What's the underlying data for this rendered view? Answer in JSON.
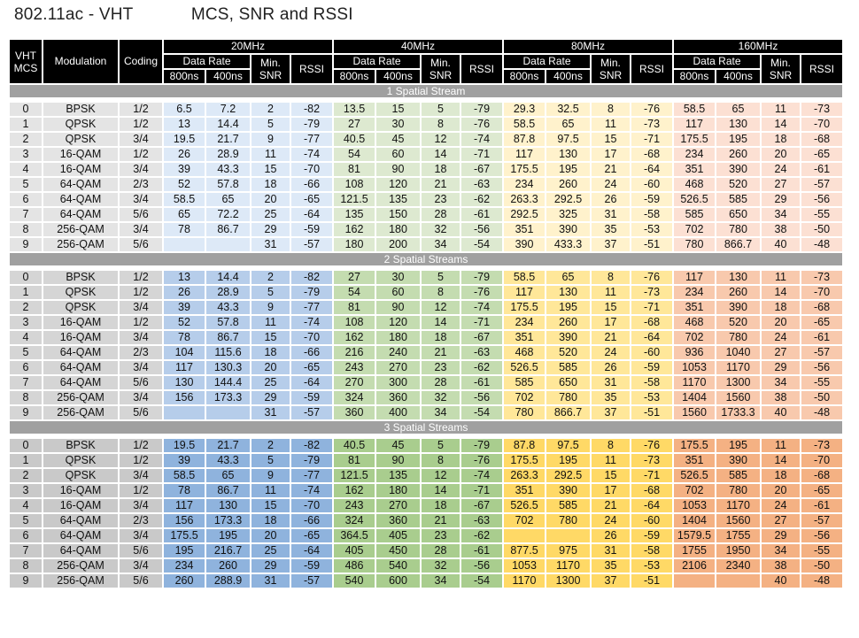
{
  "title": "802.11ac - VHT            MCS, SNR and RSSI",
  "header": {
    "vht_mcs": "VHT MCS",
    "modulation": "Modulation",
    "coding": "Coding",
    "bands": [
      "20MHz",
      "40MHz",
      "80MHz",
      "160MHz"
    ],
    "data_rate": "Data Rate",
    "min_snr": "Min. SNR",
    "rssi": "RSSI",
    "gi_800": "800ns",
    "gi_400": "400ns"
  },
  "colors": {
    "band_20": "#8fb3dd",
    "band_40": "#a9cd8e",
    "band_80": "#ffd966",
    "band_160": "#f4b183"
  },
  "streams": [
    {
      "label": "1 Spatial Stream",
      "rows": [
        [
          "0",
          "BPSK",
          "1/2",
          "6.5",
          "7.2",
          "2",
          "-82",
          "13.5",
          "15",
          "5",
          "-79",
          "29.3",
          "32.5",
          "8",
          "-76",
          "58.5",
          "65",
          "11",
          "-73"
        ],
        [
          "1",
          "QPSK",
          "1/2",
          "13",
          "14.4",
          "5",
          "-79",
          "27",
          "30",
          "8",
          "-76",
          "58.5",
          "65",
          "11",
          "-73",
          "117",
          "130",
          "14",
          "-70"
        ],
        [
          "2",
          "QPSK",
          "3/4",
          "19.5",
          "21.7",
          "9",
          "-77",
          "40.5",
          "45",
          "12",
          "-74",
          "87.8",
          "97.5",
          "15",
          "-71",
          "175.5",
          "195",
          "18",
          "-68"
        ],
        [
          "3",
          "16-QAM",
          "1/2",
          "26",
          "28.9",
          "11",
          "-74",
          "54",
          "60",
          "14",
          "-71",
          "117",
          "130",
          "17",
          "-68",
          "234",
          "260",
          "20",
          "-65"
        ],
        [
          "4",
          "16-QAM",
          "3/4",
          "39",
          "43.3",
          "15",
          "-70",
          "81",
          "90",
          "18",
          "-67",
          "175.5",
          "195",
          "21",
          "-64",
          "351",
          "390",
          "24",
          "-61"
        ],
        [
          "5",
          "64-QAM",
          "2/3",
          "52",
          "57.8",
          "18",
          "-66",
          "108",
          "120",
          "21",
          "-63",
          "234",
          "260",
          "24",
          "-60",
          "468",
          "520",
          "27",
          "-57"
        ],
        [
          "6",
          "64-QAM",
          "3/4",
          "58.5",
          "65",
          "20",
          "-65",
          "121.5",
          "135",
          "23",
          "-62",
          "263.3",
          "292.5",
          "26",
          "-59",
          "526.5",
          "585",
          "29",
          "-56"
        ],
        [
          "7",
          "64-QAM",
          "5/6",
          "65",
          "72.2",
          "25",
          "-64",
          "135",
          "150",
          "28",
          "-61",
          "292.5",
          "325",
          "31",
          "-58",
          "585",
          "650",
          "34",
          "-55"
        ],
        [
          "8",
          "256-QAM",
          "3/4",
          "78",
          "86.7",
          "29",
          "-59",
          "162",
          "180",
          "32",
          "-56",
          "351",
          "390",
          "35",
          "-53",
          "702",
          "780",
          "38",
          "-50"
        ],
        [
          "9",
          "256-QAM",
          "5/6",
          "",
          "",
          "31",
          "-57",
          "180",
          "200",
          "34",
          "-54",
          "390",
          "433.3",
          "37",
          "-51",
          "780",
          "866.7",
          "40",
          "-48"
        ]
      ]
    },
    {
      "label": "2 Spatial Streams",
      "rows": [
        [
          "0",
          "BPSK",
          "1/2",
          "13",
          "14.4",
          "2",
          "-82",
          "27",
          "30",
          "5",
          "-79",
          "58.5",
          "65",
          "8",
          "-76",
          "117",
          "130",
          "11",
          "-73"
        ],
        [
          "1",
          "QPSK",
          "1/2",
          "26",
          "28.9",
          "5",
          "-79",
          "54",
          "60",
          "8",
          "-76",
          "117",
          "130",
          "11",
          "-73",
          "234",
          "260",
          "14",
          "-70"
        ],
        [
          "2",
          "QPSK",
          "3/4",
          "39",
          "43.3",
          "9",
          "-77",
          "81",
          "90",
          "12",
          "-74",
          "175.5",
          "195",
          "15",
          "-71",
          "351",
          "390",
          "18",
          "-68"
        ],
        [
          "3",
          "16-QAM",
          "1/2",
          "52",
          "57.8",
          "11",
          "-74",
          "108",
          "120",
          "14",
          "-71",
          "234",
          "260",
          "17",
          "-68",
          "468",
          "520",
          "20",
          "-65"
        ],
        [
          "4",
          "16-QAM",
          "3/4",
          "78",
          "86.7",
          "15",
          "-70",
          "162",
          "180",
          "18",
          "-67",
          "351",
          "390",
          "21",
          "-64",
          "702",
          "780",
          "24",
          "-61"
        ],
        [
          "5",
          "64-QAM",
          "2/3",
          "104",
          "115.6",
          "18",
          "-66",
          "216",
          "240",
          "21",
          "-63",
          "468",
          "520",
          "24",
          "-60",
          "936",
          "1040",
          "27",
          "-57"
        ],
        [
          "6",
          "64-QAM",
          "3/4",
          "117",
          "130.3",
          "20",
          "-65",
          "243",
          "270",
          "23",
          "-62",
          "526.5",
          "585",
          "26",
          "-59",
          "1053",
          "1170",
          "29",
          "-56"
        ],
        [
          "7",
          "64-QAM",
          "5/6",
          "130",
          "144.4",
          "25",
          "-64",
          "270",
          "300",
          "28",
          "-61",
          "585",
          "650",
          "31",
          "-58",
          "1170",
          "1300",
          "34",
          "-55"
        ],
        [
          "8",
          "256-QAM",
          "3/4",
          "156",
          "173.3",
          "29",
          "-59",
          "324",
          "360",
          "32",
          "-56",
          "702",
          "780",
          "35",
          "-53",
          "1404",
          "1560",
          "38",
          "-50"
        ],
        [
          "9",
          "256-QAM",
          "5/6",
          "",
          "",
          "31",
          "-57",
          "360",
          "400",
          "34",
          "-54",
          "780",
          "866.7",
          "37",
          "-51",
          "1560",
          "1733.3",
          "40",
          "-48"
        ]
      ]
    },
    {
      "label": "3 Spatial Streams",
      "rows": [
        [
          "0",
          "BPSK",
          "1/2",
          "19.5",
          "21.7",
          "2",
          "-82",
          "40.5",
          "45",
          "5",
          "-79",
          "87.8",
          "97.5",
          "8",
          "-76",
          "175.5",
          "195",
          "11",
          "-73"
        ],
        [
          "1",
          "QPSK",
          "1/2",
          "39",
          "43.3",
          "5",
          "-79",
          "81",
          "90",
          "8",
          "-76",
          "175.5",
          "195",
          "11",
          "-73",
          "351",
          "390",
          "14",
          "-70"
        ],
        [
          "2",
          "QPSK",
          "3/4",
          "58.5",
          "65",
          "9",
          "-77",
          "121.5",
          "135",
          "12",
          "-74",
          "263.3",
          "292.5",
          "15",
          "-71",
          "526.5",
          "585",
          "18",
          "-68"
        ],
        [
          "3",
          "16-QAM",
          "1/2",
          "78",
          "86.7",
          "11",
          "-74",
          "162",
          "180",
          "14",
          "-71",
          "351",
          "390",
          "17",
          "-68",
          "702",
          "780",
          "20",
          "-65"
        ],
        [
          "4",
          "16-QAM",
          "3/4",
          "117",
          "130",
          "15",
          "-70",
          "243",
          "270",
          "18",
          "-67",
          "526.5",
          "585",
          "21",
          "-64",
          "1053",
          "1170",
          "24",
          "-61"
        ],
        [
          "5",
          "64-QAM",
          "2/3",
          "156",
          "173.3",
          "18",
          "-66",
          "324",
          "360",
          "21",
          "-63",
          "702",
          "780",
          "24",
          "-60",
          "1404",
          "1560",
          "27",
          "-57"
        ],
        [
          "6",
          "64-QAM",
          "3/4",
          "175.5",
          "195",
          "20",
          "-65",
          "364.5",
          "405",
          "23",
          "-62",
          "",
          "",
          "26",
          "-59",
          "1579.5",
          "1755",
          "29",
          "-56"
        ],
        [
          "7",
          "64-QAM",
          "5/6",
          "195",
          "216.7",
          "25",
          "-64",
          "405",
          "450",
          "28",
          "-61",
          "877.5",
          "975",
          "31",
          "-58",
          "1755",
          "1950",
          "34",
          "-55"
        ],
        [
          "8",
          "256-QAM",
          "3/4",
          "234",
          "260",
          "29",
          "-59",
          "486",
          "540",
          "32",
          "-56",
          "1053",
          "1170",
          "35",
          "-53",
          "2106",
          "2340",
          "38",
          "-50"
        ],
        [
          "9",
          "256-QAM",
          "5/6",
          "260",
          "288.9",
          "31",
          "-57",
          "540",
          "600",
          "34",
          "-54",
          "1170",
          "1300",
          "37",
          "-51",
          "",
          "",
          "40",
          "-48"
        ]
      ]
    }
  ]
}
